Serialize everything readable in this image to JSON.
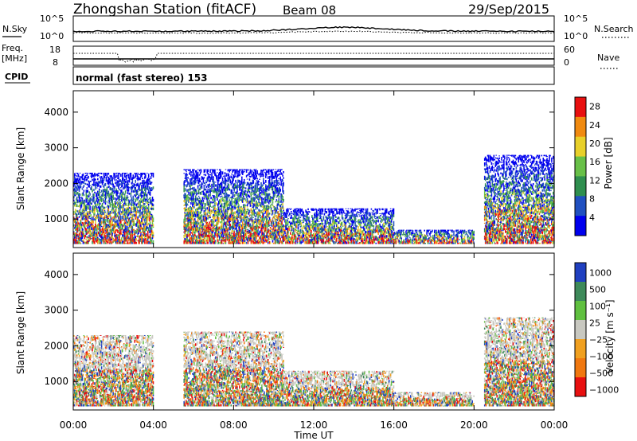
{
  "header": {
    "station": "Zhongshan Station (fitACF)",
    "beam": "Beam 08",
    "date": "29/Sep/2015"
  },
  "noise_panel": {
    "left_label": "N.Sky",
    "right_label": "N.Search",
    "left_ticks": [
      "10^5",
      "10^0"
    ],
    "right_ticks": [
      "10^5",
      "10^0"
    ]
  },
  "freq_panel": {
    "label_top": "Freq.",
    "label_unit": "[MHz]",
    "left_ticks": [
      "18",
      "8"
    ],
    "right_label": "Nave",
    "right_ticks": [
      "60",
      "0"
    ]
  },
  "cpid": {
    "label": "CPID",
    "text": "normal (fast stereo) 153"
  },
  "chart_data": [
    {
      "type": "heatmap",
      "name_label": "Power",
      "ylabel": "Slant Range [km]",
      "colorbar_label": "Power [dB]",
      "yticks": [
        "1000",
        "2000",
        "3000",
        "4000"
      ],
      "ylim": [
        200,
        4600
      ],
      "colorbar_ticks": [
        "4",
        "8",
        "12",
        "16",
        "20",
        "24",
        "28"
      ],
      "colors": [
        "#0000ee",
        "#2050c0",
        "#2f8f4f",
        "#68c048",
        "#e8d02a",
        "#f08a10",
        "#e81010"
      ],
      "echo_regions": [
        {
          "t": [
            0,
            4
          ],
          "range": [
            300,
            2300
          ]
        },
        {
          "t": [
            5.5,
            10.5
          ],
          "range": [
            300,
            2400
          ]
        },
        {
          "t": [
            10.5,
            16
          ],
          "range": [
            300,
            1300
          ]
        },
        {
          "t": [
            16,
            20
          ],
          "range": [
            300,
            700
          ]
        },
        {
          "t": [
            20.5,
            24
          ],
          "range": [
            300,
            2800
          ]
        }
      ]
    },
    {
      "type": "heatmap",
      "name_label": "Velocity",
      "ylabel": "Slant Range [km]",
      "colorbar_label": "Velocity [m s⁻¹]",
      "yticks": [
        "1000",
        "2000",
        "3000",
        "4000"
      ],
      "ylim": [
        200,
        4600
      ],
      "colorbar_ticks": [
        "1000",
        "500",
        "100",
        "25",
        "−25",
        "−100",
        "−500",
        "−1000"
      ],
      "colors": [
        "#2040c0",
        "#3e8a5a",
        "#60c040",
        "#c8c8c0",
        "#f0a020",
        "#f07810",
        "#e81010"
      ],
      "echo_regions": [
        {
          "t": [
            0,
            4
          ],
          "range": [
            300,
            2300
          ]
        },
        {
          "t": [
            5.5,
            10.5
          ],
          "range": [
            300,
            2400
          ]
        },
        {
          "t": [
            10.5,
            16
          ],
          "range": [
            300,
            1300
          ]
        },
        {
          "t": [
            16,
            20
          ],
          "range": [
            300,
            700
          ]
        },
        {
          "t": [
            20.5,
            24
          ],
          "range": [
            300,
            2800
          ]
        }
      ]
    }
  ],
  "xaxis": {
    "label": "Time UT",
    "ticks": [
      "00:00",
      "04:00",
      "08:00",
      "12:00",
      "16:00",
      "20:00",
      "00:00"
    ]
  },
  "colors": {
    "gridline": "#000000",
    "background": "#ffffff"
  }
}
